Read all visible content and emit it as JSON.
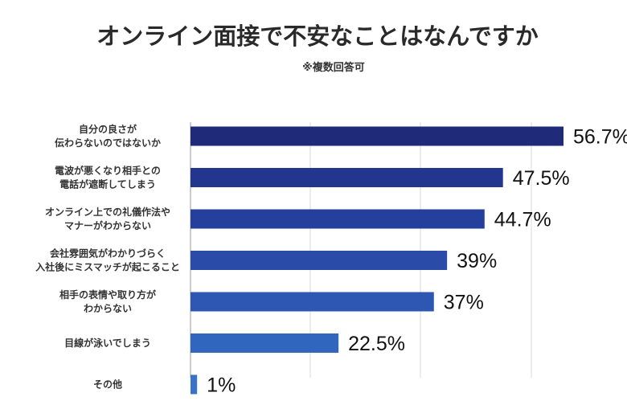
{
  "chart_data": {
    "type": "bar",
    "orientation": "horizontal",
    "title": "オンライン面接で不安なことはなんですか",
    "subtitle": "※複数回答可",
    "xlabel": "",
    "ylabel": "",
    "xlim": [
      0,
      60
    ],
    "grid": true,
    "legend": "none",
    "categories": [
      [
        "自分の良さが",
        "伝わらないのではないか"
      ],
      [
        "電波が悪くなり相手との",
        "電話が遮断してしまう"
      ],
      [
        "オンライン上での礼儀作法や",
        "マナーがわからない"
      ],
      [
        "会社雰囲気がわかりづらく",
        "入社後にミスマッチが起こること"
      ],
      [
        "相手の表情や取り方が",
        "わからない"
      ],
      [
        "目線が泳いでしまう"
      ],
      [
        "その他"
      ]
    ],
    "values": [
      56.7,
      47.5,
      44.7,
      39,
      37,
      22.5,
      1
    ],
    "value_labels": [
      "56.7%",
      "47.5%",
      "44.7%",
      "39%",
      "37%",
      "22.5%",
      "1%"
    ],
    "colors": [
      "#1f2a78",
      "#22358f",
      "#253f9c",
      "#2a4ca8",
      "#2d57b2",
      "#3166bf",
      "#3872c9"
    ]
  }
}
